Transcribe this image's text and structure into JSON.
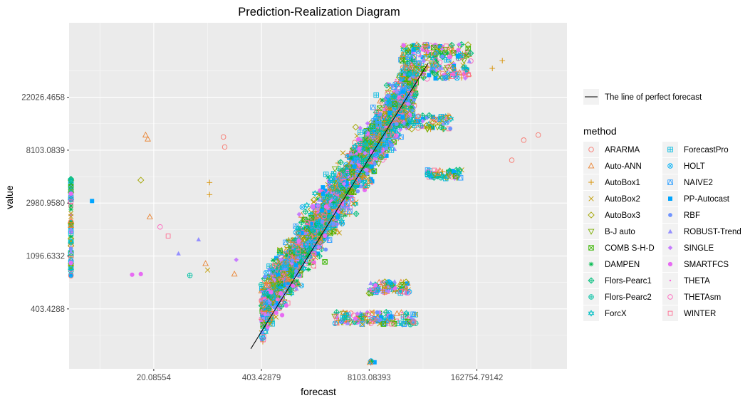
{
  "chart_data": {
    "type": "scatter",
    "title": "Prediction-Realization Diagram",
    "xlabel": "forecast",
    "ylabel": "value",
    "x_scale": "log",
    "y_scale": "log",
    "xlim": [
      1.9,
      2000000
    ],
    "ylim": [
      130,
      90000
    ],
    "x_ticks": [
      {
        "value": 20.08554,
        "label": "20.08554"
      },
      {
        "value": 403.42879,
        "label": "403.42879"
      },
      {
        "value": 8103.08393,
        "label": "8103.08393"
      },
      {
        "value": 162754.79142,
        "label": "162754.79142"
      }
    ],
    "y_ticks": [
      {
        "value": 403.4288,
        "label": "403.4288"
      },
      {
        "value": 1096.6332,
        "label": "1096.6332"
      },
      {
        "value": 2980.958,
        "label": "2980.9580"
      },
      {
        "value": 8103.0839,
        "label": "8103.0839"
      },
      {
        "value": 22026.4658,
        "label": "22026.4658"
      }
    ],
    "grid": true,
    "reference_line": {
      "label": "The line of perfect forecast",
      "from": [
        300,
        190
      ],
      "to": [
        42000,
        42000
      ]
    },
    "legend": {
      "title": "method",
      "placement": "right"
    },
    "series": [
      {
        "name": "ARARMA",
        "color": "#F8766D",
        "shape": "circle-open"
      },
      {
        "name": "Auto-ANN",
        "color": "#EA8331",
        "shape": "triangle-open"
      },
      {
        "name": "AutoBox1",
        "color": "#D89000",
        "shape": "plus"
      },
      {
        "name": "AutoBox2",
        "color": "#C09B00",
        "shape": "cross"
      },
      {
        "name": "AutoBox3",
        "color": "#A3A500",
        "shape": "diamond-open"
      },
      {
        "name": "B-J auto",
        "color": "#7CAE00",
        "shape": "triangle-down-open"
      },
      {
        "name": "COMB S-H-D",
        "color": "#39B600",
        "shape": "square-cross"
      },
      {
        "name": "DAMPEN",
        "color": "#00BB4E",
        "shape": "asterisk"
      },
      {
        "name": "Flors-Pearc1",
        "color": "#00BF7D",
        "shape": "diamond-plus"
      },
      {
        "name": "Flors-Pearc2",
        "color": "#00C1A3",
        "shape": "circle-plus"
      },
      {
        "name": "ForcX",
        "color": "#00BFC4",
        "shape": "star-of-david"
      },
      {
        "name": "ForecastPro",
        "color": "#00BAE0",
        "shape": "square-plus"
      },
      {
        "name": "HOLT",
        "color": "#00B0F6",
        "shape": "circle-cross"
      },
      {
        "name": "NAIVE2",
        "color": "#35A2FF",
        "shape": "square-triangle"
      },
      {
        "name": "PP-Autocast",
        "color": "#00A5FF",
        "shape": "square-filled"
      },
      {
        "name": "RBF",
        "color": "#6F94FF",
        "shape": "circle-filled"
      },
      {
        "name": "ROBUST-Trend",
        "color": "#9590FF",
        "shape": "triangle-filled"
      },
      {
        "name": "SINGLE",
        "color": "#C77CFF",
        "shape": "diamond-filled"
      },
      {
        "name": "SMARTFCS",
        "color": "#E76BF3",
        "shape": "circle-filled-large"
      },
      {
        "name": "THETA",
        "color": "#FA62DB",
        "shape": "dot"
      },
      {
        "name": "THETAsm",
        "color": "#FF62BC",
        "shape": "circle-open"
      },
      {
        "name": "WINTER",
        "color": "#FF6C91",
        "shape": "square-open"
      }
    ],
    "cloud": {
      "description_values": "dense band of points roughly following the perfect-forecast line",
      "bands": [
        {
          "x_range": [
            400,
            30000
          ],
          "y_center_offset": 0,
          "spread": 0.55,
          "count": 2600
        },
        {
          "x_range": [
            3000,
            30000
          ],
          "y_range": [
            300,
            380
          ],
          "count": 140
        },
        {
          "x_range": [
            8000,
            25000
          ],
          "y_range": [
            540,
            680
          ],
          "count": 90
        },
        {
          "x_range": [
            20000,
            140000
          ],
          "y_range": [
            31000,
            60000
          ],
          "count": 260
        },
        {
          "x_range": [
            20000,
            80000
          ],
          "y_range": [
            12000,
            16000
          ],
          "count": 80
        },
        {
          "x_range": [
            40000,
            110000
          ],
          "y_range": [
            4700,
            5600
          ],
          "count": 60
        }
      ],
      "left_column": {
        "x": 2,
        "y_range": [
          730,
          4800
        ],
        "count": 80
      },
      "bottom_cluster": {
        "x": 9000,
        "y": 150,
        "count": 6
      },
      "outliers": [
        {
          "x": 16,
          "y": 10800,
          "series": "Auto-ANN"
        },
        {
          "x": 17,
          "y": 10000,
          "series": "Auto-ANN"
        },
        {
          "x": 18,
          "y": 2300,
          "series": "Auto-ANN"
        },
        {
          "x": 140,
          "y": 10400,
          "series": "ARARMA"
        },
        {
          "x": 95,
          "y": 4400,
          "series": "AutoBox1"
        },
        {
          "x": 95,
          "y": 3500,
          "series": "AutoBox1"
        },
        {
          "x": 14,
          "y": 4600,
          "series": "AutoBox3"
        },
        {
          "x": 3.6,
          "y": 3100,
          "series": "PP-Autocast"
        },
        {
          "x": 24,
          "y": 1900,
          "series": "THETAsm"
        },
        {
          "x": 14,
          "y": 780,
          "series": "SMARTFCS"
        },
        {
          "x": 11,
          "y": 770,
          "series": "SMARTFCS"
        },
        {
          "x": 30,
          "y": 1600,
          "series": "WINTER"
        },
        {
          "x": 70,
          "y": 1500,
          "series": "ROBUST-Trend"
        },
        {
          "x": 40,
          "y": 1150,
          "series": "ROBUST-Trend"
        },
        {
          "x": 90,
          "y": 840,
          "series": "AutoBox2"
        },
        {
          "x": 85,
          "y": 950,
          "series": "Auto-ANN"
        },
        {
          "x": 55,
          "y": 760,
          "series": "Flors-Pearc2"
        },
        {
          "x": 145,
          "y": 8600,
          "series": "ARARMA"
        },
        {
          "x": 190,
          "y": 780,
          "series": "Auto-ANN"
        },
        {
          "x": 200,
          "y": 1020,
          "series": "SINGLE"
        },
        {
          "x": 900000,
          "y": 10800,
          "series": "ARARMA"
        },
        {
          "x": 600000,
          "y": 9800,
          "series": "ARARMA"
        },
        {
          "x": 430000,
          "y": 6700,
          "series": "ARARMA"
        },
        {
          "x": 330000,
          "y": 44000,
          "series": "AutoBox1"
        },
        {
          "x": 250000,
          "y": 38000,
          "series": "AutoBox1"
        }
      ]
    }
  }
}
